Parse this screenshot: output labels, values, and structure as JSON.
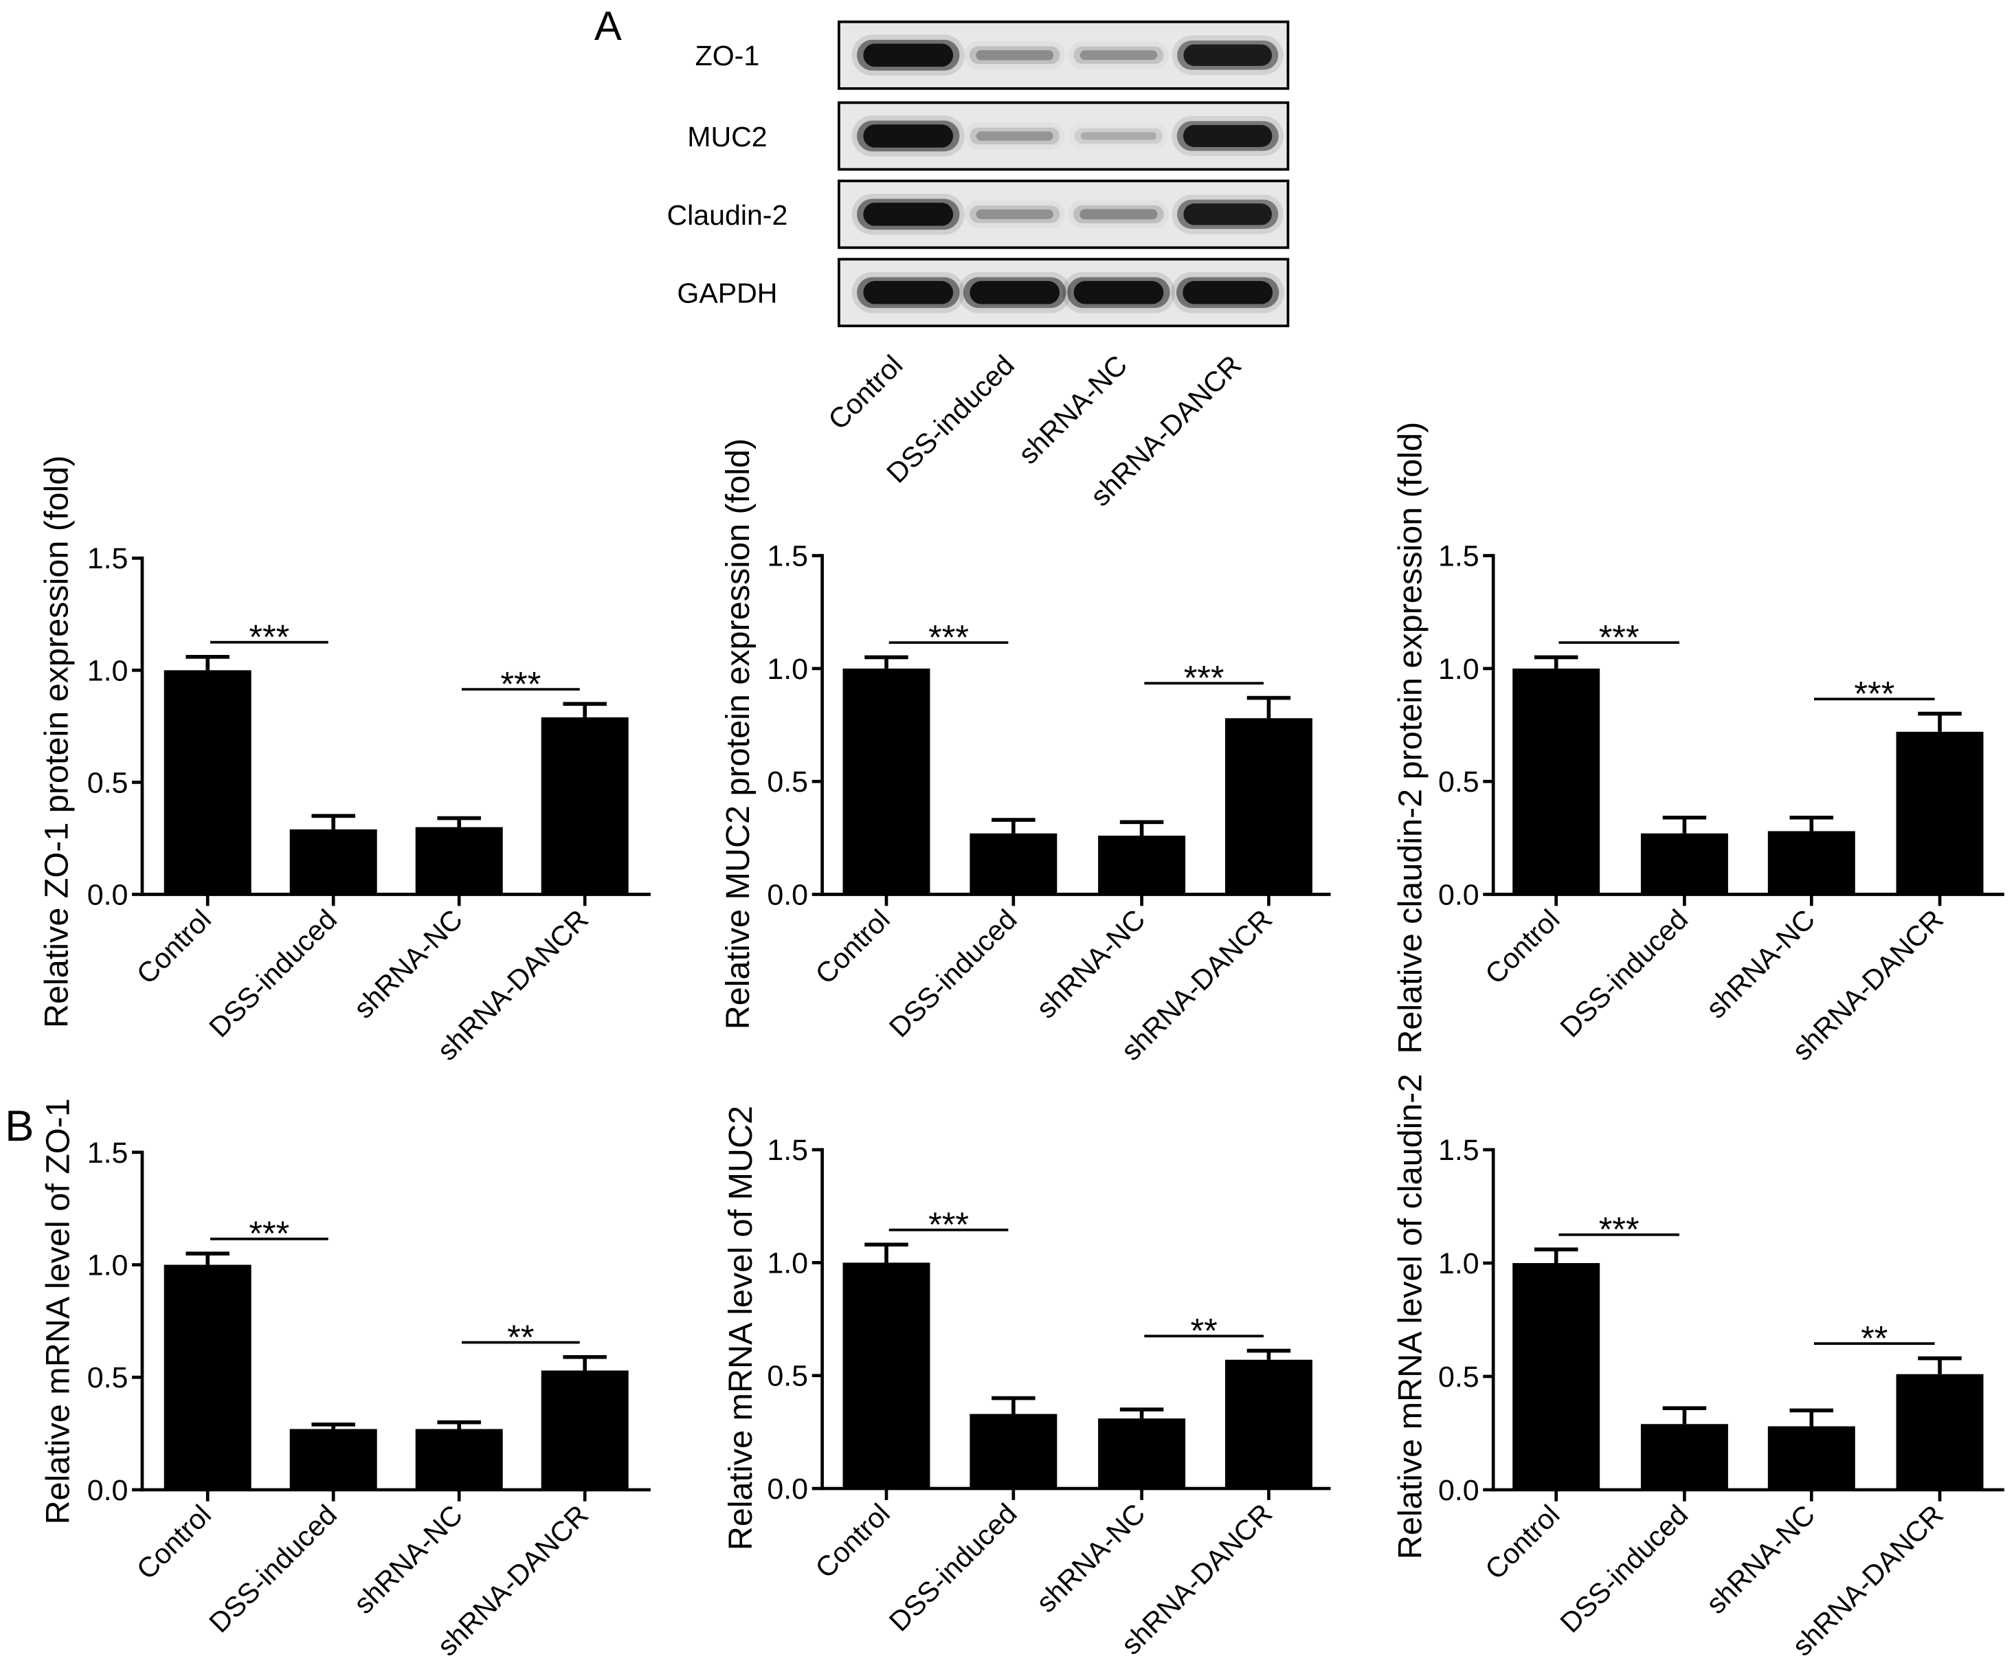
{
  "figure": {
    "panel_a_label": "A",
    "panel_b_label": "B"
  },
  "colors": {
    "bars": "#000000",
    "axes": "#000000",
    "blot_membrane": "#e8e8e8",
    "blot_band": "#000000"
  },
  "blot": {
    "lanes": [
      "Control",
      "DSS-induced",
      "shRNA-NC",
      "shRNA-DANCR"
    ],
    "rows": [
      {
        "label": "ZO-1",
        "band_intensity": [
          1.0,
          0.32,
          0.3,
          0.92
        ]
      },
      {
        "label": "MUC2",
        "band_intensity": [
          1.0,
          0.28,
          0.2,
          0.95
        ]
      },
      {
        "label": "Claudin-2",
        "band_intensity": [
          1.0,
          0.3,
          0.33,
          0.92
        ]
      },
      {
        "label": "GAPDH",
        "band_intensity": [
          1.0,
          1.0,
          1.0,
          1.0
        ]
      }
    ]
  },
  "chart_data": [
    {
      "type": "bar",
      "categories": [
        "Control",
        "DSS-induced",
        "shRNA-NC",
        "shRNA-DANCR"
      ],
      "values": [
        1.0,
        0.29,
        0.3,
        0.79
      ],
      "errors": [
        0.06,
        0.06,
        0.04,
        0.06
      ],
      "ylabel": "Relative ZO-1 protein expression (fold)",
      "ylim": [
        0,
        1.5
      ],
      "yticks": [
        0,
        0.5,
        1.0,
        1.5
      ],
      "ytick_labels": [
        "0.0",
        "0.5",
        "1.0",
        "1.5"
      ],
      "significance": [
        {
          "between": [
            0,
            1
          ],
          "label": "***"
        },
        {
          "between": [
            2,
            3
          ],
          "label": "***"
        }
      ]
    },
    {
      "type": "bar",
      "categories": [
        "Control",
        "DSS-induced",
        "shRNA-NC",
        "shRNA-DANCR"
      ],
      "values": [
        1.0,
        0.27,
        0.26,
        0.78
      ],
      "errors": [
        0.05,
        0.06,
        0.06,
        0.09
      ],
      "ylabel": "Relative MUC2 protein expression (fold)",
      "ylim": [
        0,
        1.5
      ],
      "yticks": [
        0,
        0.5,
        1.0,
        1.5
      ],
      "ytick_labels": [
        "0.0",
        "0.5",
        "1.0",
        "1.5"
      ],
      "significance": [
        {
          "between": [
            0,
            1
          ],
          "label": "***"
        },
        {
          "between": [
            2,
            3
          ],
          "label": "***"
        }
      ]
    },
    {
      "type": "bar",
      "categories": [
        "Control",
        "DSS-induced",
        "shRNA-NC",
        "shRNA-DANCR"
      ],
      "values": [
        1.0,
        0.27,
        0.28,
        0.72
      ],
      "errors": [
        0.05,
        0.07,
        0.06,
        0.08
      ],
      "ylabel": "Relative claudin-2 protein expression (fold)",
      "ylim": [
        0,
        1.5
      ],
      "yticks": [
        0,
        0.5,
        1.0,
        1.5
      ],
      "ytick_labels": [
        "0.0",
        "0.5",
        "1.0",
        "1.5"
      ],
      "significance": [
        {
          "between": [
            0,
            1
          ],
          "label": "***"
        },
        {
          "between": [
            2,
            3
          ],
          "label": "***"
        }
      ]
    },
    {
      "type": "bar",
      "categories": [
        "Control",
        "DSS-induced",
        "shRNA-NC",
        "shRNA-DANCR"
      ],
      "values": [
        1.0,
        0.27,
        0.27,
        0.53
      ],
      "errors": [
        0.05,
        0.02,
        0.03,
        0.06
      ],
      "ylabel": "Relative mRNA level of ZO-1",
      "ylim": [
        0,
        1.5
      ],
      "yticks": [
        0,
        0.5,
        1.0,
        1.5
      ],
      "ytick_labels": [
        "0.0",
        "0.5",
        "1.0",
        "1.5"
      ],
      "significance": [
        {
          "between": [
            0,
            1
          ],
          "label": "***"
        },
        {
          "between": [
            2,
            3
          ],
          "label": "**"
        }
      ]
    },
    {
      "type": "bar",
      "categories": [
        "Control",
        "DSS-induced",
        "shRNA-NC",
        "shRNA-DANCR"
      ],
      "values": [
        1.0,
        0.33,
        0.31,
        0.57
      ],
      "errors": [
        0.08,
        0.07,
        0.04,
        0.04
      ],
      "ylabel": "Relative mRNA level of MUC2",
      "ylim": [
        0,
        1.5
      ],
      "yticks": [
        0,
        0.5,
        1.0,
        1.5
      ],
      "ytick_labels": [
        "0.0",
        "0.5",
        "1.0",
        "1.5"
      ],
      "significance": [
        {
          "between": [
            0,
            1
          ],
          "label": "***"
        },
        {
          "between": [
            2,
            3
          ],
          "label": "**"
        }
      ]
    },
    {
      "type": "bar",
      "categories": [
        "Control",
        "DSS-induced",
        "shRNA-NC",
        "shRNA-DANCR"
      ],
      "values": [
        1.0,
        0.29,
        0.28,
        0.51
      ],
      "errors": [
        0.06,
        0.07,
        0.07,
        0.07
      ],
      "ylabel": "Relative mRNA level of claudin-2",
      "ylim": [
        0,
        1.5
      ],
      "yticks": [
        0,
        0.5,
        1.0,
        1.5
      ],
      "ytick_labels": [
        "0.0",
        "0.5",
        "1.0",
        "1.5"
      ],
      "significance": [
        {
          "between": [
            0,
            1
          ],
          "label": "***"
        },
        {
          "between": [
            2,
            3
          ],
          "label": "**"
        }
      ]
    }
  ]
}
